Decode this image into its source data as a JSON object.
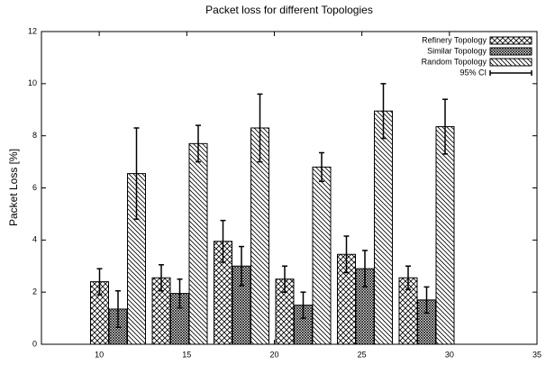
{
  "chart_data": {
    "type": "bar",
    "title": "Packet loss for different Topologies",
    "ylabel": "Packet Loss [%]",
    "categories": [
      null,
      null,
      null,
      null,
      null,
      null
    ],
    "series": [
      {
        "name": "Refinery Topology",
        "pattern": "crosshatch",
        "color": "#000000",
        "values": [
          2.4,
          2.55,
          3.95,
          2.5,
          3.45,
          2.55
        ],
        "errors": [
          0.5,
          0.5,
          0.8,
          0.5,
          0.7,
          0.45
        ]
      },
      {
        "name": "Similar Topology",
        "pattern": "dense-crosshatch",
        "color": "#000000",
        "values": [
          1.35,
          1.95,
          3.0,
          1.5,
          2.9,
          1.7
        ],
        "errors": [
          0.7,
          0.55,
          0.75,
          0.5,
          0.7,
          0.5
        ]
      },
      {
        "name": "Random Topology",
        "pattern": "diagonal",
        "color": "#000000",
        "values": [
          6.55,
          7.7,
          8.3,
          6.8,
          8.95,
          8.35
        ],
        "errors": [
          1.75,
          0.7,
          1.3,
          0.55,
          1.05,
          1.05
        ]
      }
    ],
    "error_label": "95% CI",
    "xlim": [
      6.7,
      35
    ],
    "xticks": [
      10,
      15,
      20,
      25,
      30,
      35
    ],
    "ylim": [
      0,
      12
    ],
    "yticks": [
      0,
      2,
      4,
      6,
      8,
      10,
      12
    ],
    "legend": "top-right"
  }
}
